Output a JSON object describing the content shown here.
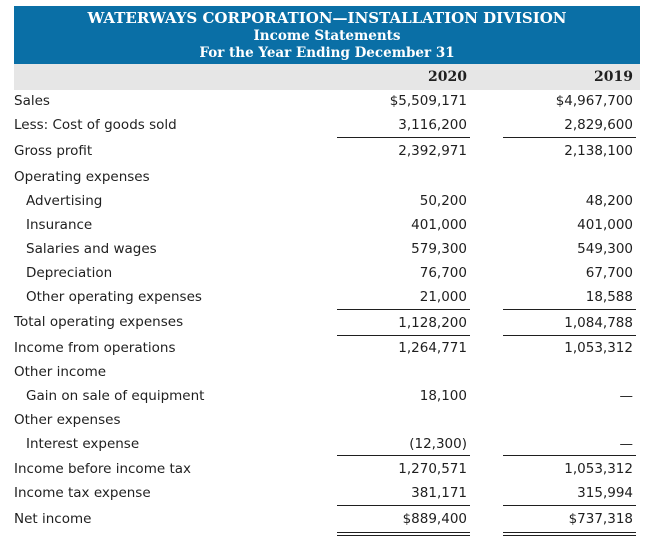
{
  "header": {
    "company": "WATERWAYS CORPORATION—INSTALLATION DIVISION",
    "statement": "Income Statements",
    "period": "For the Year Ending December 31"
  },
  "columns": {
    "y2020": "2020",
    "y2019": "2019"
  },
  "rows": {
    "sales": {
      "label": "Sales",
      "v2020": "$5,509,171",
      "v2019": "$4,967,700"
    },
    "cogs": {
      "label": "Less: Cost of goods sold",
      "v2020": "3,116,200",
      "v2019": "2,829,600"
    },
    "gross": {
      "label": "Gross profit",
      "v2020": "2,392,971",
      "v2019": "2,138,100"
    },
    "opex_head": {
      "label": "Operating expenses"
    },
    "advertising": {
      "label": "Advertising",
      "v2020": "50,200",
      "v2019": "48,200"
    },
    "insurance": {
      "label": "Insurance",
      "v2020": "401,000",
      "v2019": "401,000"
    },
    "salaries": {
      "label": "Salaries and wages",
      "v2020": "579,300",
      "v2019": "549,300"
    },
    "depreciation": {
      "label": "Depreciation",
      "v2020": "76,700",
      "v2019": "67,700"
    },
    "other_opex": {
      "label": "Other operating expenses",
      "v2020": "21,000",
      "v2019": "18,588"
    },
    "total_opex": {
      "label": "Total operating expenses",
      "v2020": "1,128,200",
      "v2019": "1,084,788"
    },
    "income_ops": {
      "label": "Income from operations",
      "v2020": "1,264,771",
      "v2019": "1,053,312"
    },
    "other_income_head": {
      "label": "Other income"
    },
    "gain": {
      "label": "Gain on sale of equipment",
      "v2020": "18,100",
      "v2019": "—"
    },
    "other_exp_head": {
      "label": "Other expenses"
    },
    "interest": {
      "label": "Interest expense",
      "v2020": "(12,300)",
      "v2019": "—"
    },
    "pretax": {
      "label": "Income before income tax",
      "v2020": "1,270,571",
      "v2019": "1,053,312"
    },
    "tax": {
      "label": "Income tax expense",
      "v2020": "381,171",
      "v2019": "315,994"
    },
    "net": {
      "label": "Net income",
      "v2020": "$889,400",
      "v2019": "$737,318"
    }
  },
  "colors": {
    "header_bg": "#0a6fa6",
    "column_bar_bg": "#e6e6e6"
  }
}
